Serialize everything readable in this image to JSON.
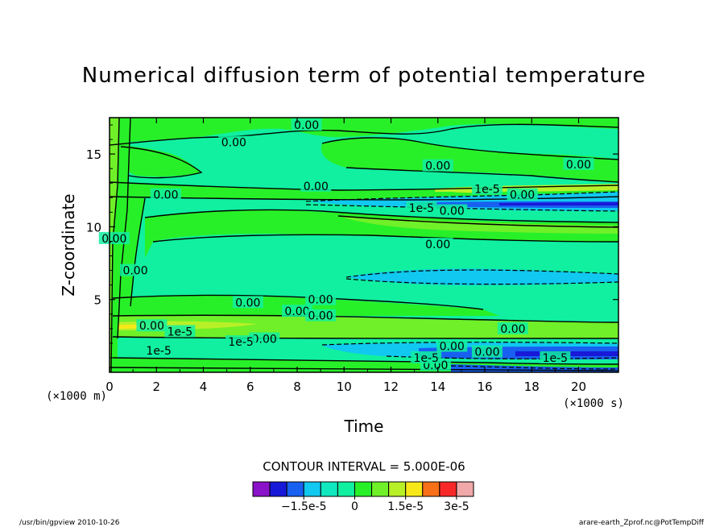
{
  "chart_data": {
    "type": "contour",
    "title": "Numerical diffusion term of potential temperature",
    "xlabel": "Time",
    "ylabel": "Z-coordinate",
    "x_unit": "(×1000 s)",
    "y_unit": "(×1000 m)",
    "xlim": [
      0,
      21.7
    ],
    "ylim": [
      0,
      17.5
    ],
    "x_ticks": [
      0,
      2,
      4,
      6,
      8,
      10,
      12,
      14,
      16,
      18,
      20
    ],
    "y_ticks": [
      5,
      10,
      15
    ],
    "contour_interval_text": "CONTOUR INTERVAL = 5.000E-06",
    "contour_labels": [
      {
        "text": "0.00",
        "x": 8.4,
        "y": 17.0
      },
      {
        "text": "0.00",
        "x": 5.3,
        "y": 15.8
      },
      {
        "text": "0.00",
        "x": 14.0,
        "y": 14.2
      },
      {
        "text": "0.00",
        "x": 20.0,
        "y": 14.3
      },
      {
        "text": "0.00",
        "x": 8.8,
        "y": 12.8
      },
      {
        "text": "0.00",
        "x": 2.4,
        "y": 12.2
      },
      {
        "text": "0.00",
        "x": 17.6,
        "y": 12.2
      },
      {
        "text": "0.00",
        "x": 14.6,
        "y": 11.1
      },
      {
        "text": "0.00",
        "x": 14.0,
        "y": 8.8
      },
      {
        "text": "0.00",
        "x": 5.9,
        "y": 4.8
      },
      {
        "text": "0.00",
        "x": 9.0,
        "y": 5.0
      },
      {
        "text": "0.00",
        "x": 8.0,
        "y": 4.2
      },
      {
        "text": "0.00",
        "x": 9.0,
        "y": 3.9
      },
      {
        "text": "0.00",
        "x": 1.8,
        "y": 3.2
      },
      {
        "text": "0.00",
        "x": 17.2,
        "y": 3.0
      },
      {
        "text": "0.00",
        "x": 6.6,
        "y": 2.3
      },
      {
        "text": "0.00",
        "x": 14.6,
        "y": 1.8
      },
      {
        "text": "0.00",
        "x": 16.1,
        "y": 1.4
      },
      {
        "text": "0.00",
        "x": 13.9,
        "y": 0.5
      },
      {
        "text": "0.00",
        "x": 0.2,
        "y": 9.2
      },
      {
        "text": "0.00",
        "x": 1.1,
        "y": 7.0
      },
      {
        "text": "1e-5",
        "x": 16.1,
        "y": 12.6
      },
      {
        "text": "1e-5",
        "x": 13.3,
        "y": 11.3
      },
      {
        "text": "1e-5",
        "x": 3.0,
        "y": 2.8
      },
      {
        "text": "1e-5",
        "x": 5.6,
        "y": 2.1
      },
      {
        "text": "1e-5",
        "x": 13.5,
        "y": 1.0
      },
      {
        "text": "1e-5",
        "x": 19.0,
        "y": 1.0
      },
      {
        "text": "1e-5",
        "x": 2.1,
        "y": 1.5
      }
    ],
    "colorbar": {
      "levels": [
        -3e-05,
        -2.5e-05,
        -2e-05,
        -1.5e-05,
        -1e-05,
        -5e-06,
        0,
        5e-06,
        1e-05,
        1.5e-05,
        2e-05,
        2.5e-05,
        3e-05,
        3.5e-05
      ],
      "colors": [
        "#8a12c8",
        "#1818d8",
        "#1860f0",
        "#10c8f0",
        "#10e8c0",
        "#10f0a0",
        "#28f028",
        "#70f028",
        "#b8f028",
        "#f8e818",
        "#f87018",
        "#f82828",
        "#f0a8a8"
      ],
      "tick_labels": [
        {
          "value": -1.5e-05,
          "text": "−1.5e-5"
        },
        {
          "value": 0,
          "text": "0"
        },
        {
          "value": 1.5e-05,
          "text": "1.5e-5"
        },
        {
          "value": 3e-05,
          "text": "3e-5"
        }
      ]
    }
  },
  "footer": {
    "left": "/usr/bin/gpview  2010-10-26",
    "right": "arare-earth_Zprof.nc@PotTempDiff"
  }
}
